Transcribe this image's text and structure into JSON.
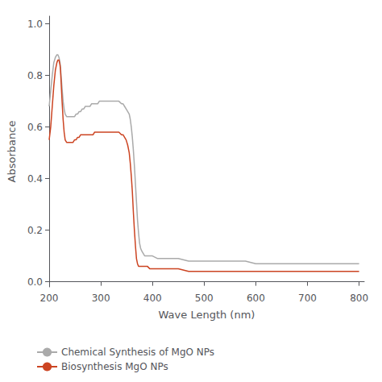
{
  "chart_data": {
    "type": "line",
    "xlabel": "Wave Length (nm)",
    "ylabel": "Absorbance",
    "xlim": [
      200,
      810
    ],
    "ylim": [
      -0.02,
      1.03
    ],
    "xticks": [
      200,
      300,
      400,
      500,
      600,
      700,
      800
    ],
    "yticks": [
      {
        "value": 0.0,
        "label": "0.0"
      },
      0.2,
      0.4,
      0.6,
      0.8,
      {
        "value": 1.0,
        "label": "1.0"
      }
    ],
    "grid": false,
    "legend": "lower left",
    "x": [
      200,
      203,
      206,
      209,
      212,
      215,
      217,
      219,
      220,
      221,
      222,
      223,
      225,
      227,
      229,
      231,
      234,
      237,
      240,
      243,
      246,
      249,
      252,
      255,
      258,
      261,
      264,
      267,
      270,
      273,
      276,
      279,
      282,
      285,
      288,
      291,
      294,
      297,
      300,
      305,
      310,
      315,
      320,
      325,
      330,
      335,
      340,
      343,
      346,
      349,
      352,
      355,
      357,
      359,
      361,
      363,
      365,
      367,
      369,
      371,
      373,
      375,
      377,
      379,
      382,
      385,
      390,
      395,
      400,
      410,
      420,
      430,
      450,
      470,
      490,
      500,
      520,
      550,
      580,
      600,
      650,
      700,
      750,
      800
    ],
    "series": [
      {
        "name": "Chemical Synthesis of MgO NPs",
        "color": "#aaaaaa",
        "values": [
          0.68,
          0.74,
          0.8,
          0.85,
          0.87,
          0.88,
          0.88,
          0.87,
          0.86,
          0.85,
          0.83,
          0.8,
          0.75,
          0.7,
          0.67,
          0.65,
          0.64,
          0.64,
          0.64,
          0.64,
          0.64,
          0.64,
          0.65,
          0.65,
          0.66,
          0.66,
          0.67,
          0.67,
          0.68,
          0.68,
          0.68,
          0.68,
          0.69,
          0.69,
          0.69,
          0.69,
          0.69,
          0.7,
          0.7,
          0.7,
          0.7,
          0.7,
          0.7,
          0.7,
          0.7,
          0.7,
          0.69,
          0.69,
          0.68,
          0.67,
          0.66,
          0.65,
          0.63,
          0.6,
          0.56,
          0.51,
          0.45,
          0.38,
          0.31,
          0.24,
          0.19,
          0.15,
          0.13,
          0.12,
          0.11,
          0.1,
          0.1,
          0.1,
          0.1,
          0.09,
          0.09,
          0.09,
          0.09,
          0.08,
          0.08,
          0.08,
          0.08,
          0.08,
          0.08,
          0.07,
          0.07,
          0.07,
          0.07,
          0.07
        ]
      },
      {
        "name": "Biosynthesis MgO NPs",
        "color": "#cc4422",
        "values": [
          0.55,
          0.6,
          0.68,
          0.76,
          0.82,
          0.85,
          0.86,
          0.86,
          0.85,
          0.84,
          0.82,
          0.78,
          0.7,
          0.63,
          0.58,
          0.55,
          0.54,
          0.54,
          0.54,
          0.54,
          0.54,
          0.55,
          0.55,
          0.56,
          0.56,
          0.57,
          0.57,
          0.57,
          0.57,
          0.57,
          0.57,
          0.57,
          0.57,
          0.57,
          0.58,
          0.58,
          0.58,
          0.58,
          0.58,
          0.58,
          0.58,
          0.58,
          0.58,
          0.58,
          0.58,
          0.58,
          0.57,
          0.57,
          0.56,
          0.55,
          0.53,
          0.5,
          0.46,
          0.41,
          0.35,
          0.27,
          0.2,
          0.14,
          0.09,
          0.07,
          0.06,
          0.06,
          0.06,
          0.06,
          0.06,
          0.06,
          0.06,
          0.05,
          0.05,
          0.05,
          0.05,
          0.05,
          0.05,
          0.04,
          0.04,
          0.04,
          0.04,
          0.04,
          0.04,
          0.04,
          0.04,
          0.04,
          0.04,
          0.04
        ]
      }
    ]
  }
}
